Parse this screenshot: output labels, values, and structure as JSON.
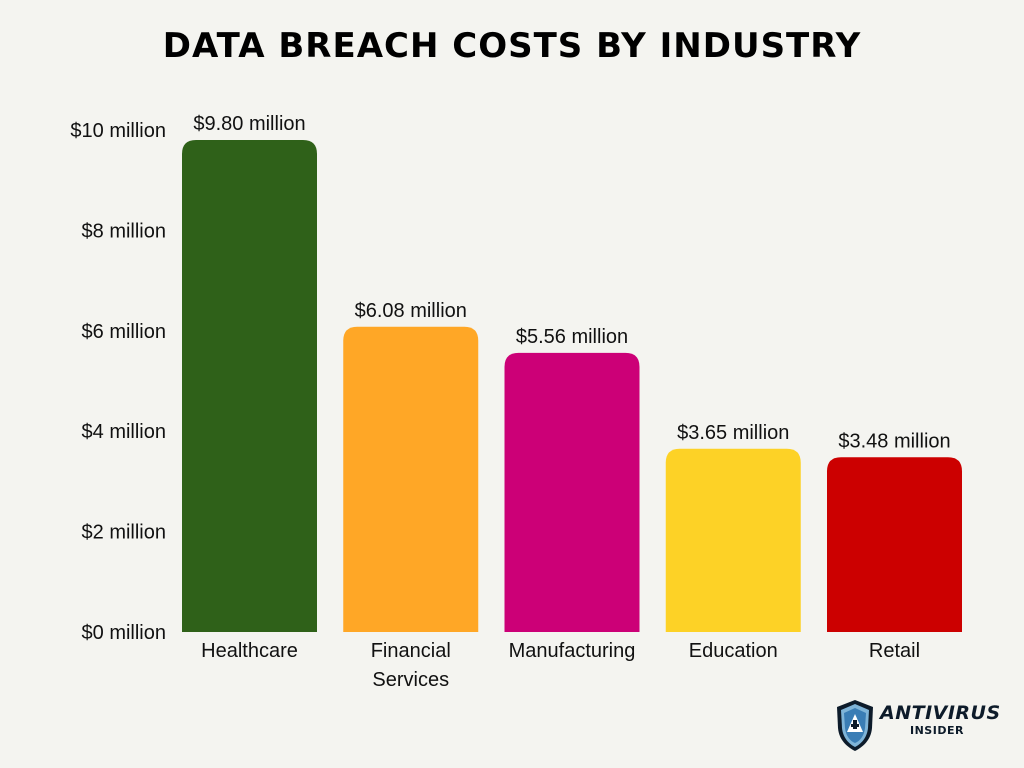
{
  "chart_data": {
    "type": "bar",
    "title": "DATA BREACH COSTS BY INDUSTRY",
    "categories": [
      "Healthcare",
      "Financial Services",
      "Manufacturing",
      "Education",
      "Retail"
    ],
    "values": [
      9.8,
      6.08,
      5.56,
      3.65,
      3.48
    ],
    "value_labels": [
      "$9.80 million",
      "$6.08 million",
      "$5.56 million",
      "$3.65 million",
      "$3.48 million"
    ],
    "colors": [
      "#2f6119",
      "#ffa726",
      "#cc0077",
      "#fdd226",
      "#cc0000"
    ],
    "yticks": [
      0,
      2,
      4,
      6,
      8,
      10
    ],
    "ytick_labels": [
      "$0 million",
      "$2 million",
      "$4 million",
      "$6 million",
      "$8 million",
      "$10 million"
    ],
    "ylim": [
      0,
      10
    ],
    "grid": false,
    "legend": "none"
  },
  "logo": {
    "icon": "shield-icon",
    "main": "ANTIVIRUS",
    "sub": "INSIDER"
  }
}
